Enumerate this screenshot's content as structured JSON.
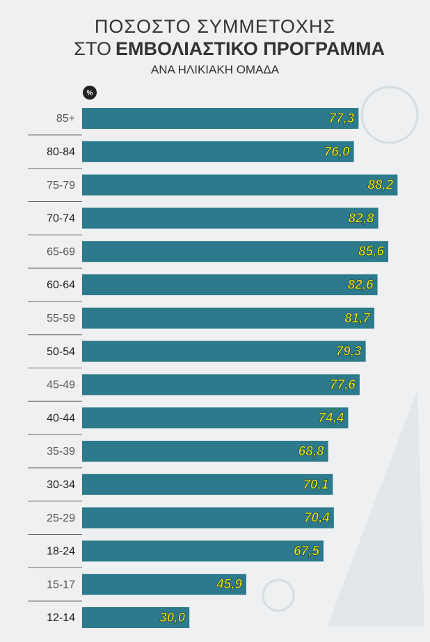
{
  "chart_data": {
    "type": "bar",
    "orientation": "horizontal",
    "title": [
      "ΠΟΣΟΣΤΟ ΣΥΜΜΕΤΟΧΗΣ",
      "ΣΤΟ",
      "ΕΜΒΟΛΙΑΣΤΙΚΟ ΠΡΟΓΡΑΜΜΑ"
    ],
    "subtitle": "ΑΝΑ ΗΛΙΚΙΑΚΗ ΟΜΑΔΑ",
    "unit": "%",
    "categories": [
      "85+",
      "80-84",
      "75-79",
      "70-74",
      "65-69",
      "60-64",
      "55-59",
      "50-54",
      "45-49",
      "40-44",
      "35-39",
      "30-34",
      "25-29",
      "18-24",
      "15-17",
      "12-14"
    ],
    "values": [
      77.3,
      76.0,
      88.2,
      82.8,
      85.6,
      82.6,
      81.7,
      79.3,
      77.6,
      74.4,
      68.8,
      70.1,
      70.4,
      67.5,
      45.9,
      30.0
    ],
    "value_labels": [
      "77,3",
      "76,0",
      "88,2",
      "82,8",
      "85,6",
      "82,6",
      "81,7",
      "79,3",
      "77,6",
      "74,4",
      "68,8",
      "70,1",
      "70,4",
      "67,5",
      "45,9",
      "30,0"
    ],
    "color": "#2c7a8b",
    "label_color": "#f5ea00"
  }
}
